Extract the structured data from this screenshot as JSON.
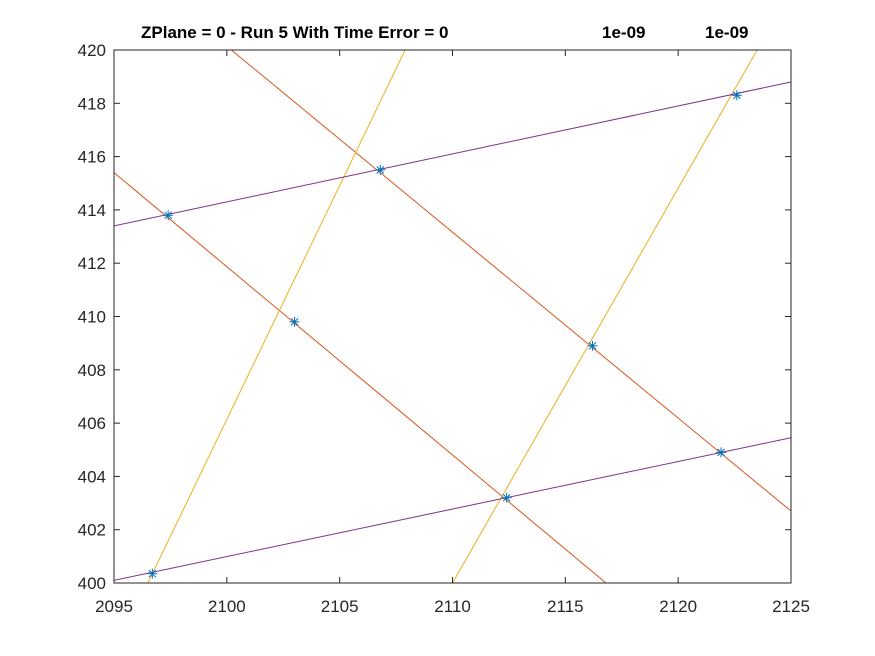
{
  "figure": {
    "title_main": "ZPlane = 0 - Run 5 With Time Error = 0",
    "title_val1": "1e-09",
    "title_val2": "1e-09"
  },
  "chart_data": {
    "type": "line",
    "title": "ZPlane = 0 - Run 5 With Time Error = 0        1e-09        1e-09",
    "xlabel": "",
    "ylabel": "",
    "xlim": [
      2095,
      2125
    ],
    "ylim": [
      400,
      420
    ],
    "xticks": [
      2095,
      2100,
      2105,
      2110,
      2115,
      2120,
      2125
    ],
    "yticks": [
      400,
      402,
      404,
      406,
      408,
      410,
      412,
      414,
      416,
      418,
      420
    ],
    "grid": false,
    "box": true,
    "series": [
      {
        "color": "#D95319",
        "points": [
          [
            2095.0,
            415.4
          ],
          [
            2116.8,
            400.0
          ]
        ]
      },
      {
        "color": "#D95319",
        "points": [
          [
            2100.2,
            420.0
          ],
          [
            2125.0,
            402.7
          ]
        ]
      },
      {
        "color": "#EDB120",
        "points": [
          [
            2096.5,
            400.0
          ],
          [
            2107.9,
            420.0
          ]
        ]
      },
      {
        "color": "#EDB120",
        "points": [
          [
            2110.0,
            400.0
          ],
          [
            2123.5,
            420.0
          ]
        ]
      },
      {
        "color": "#7E2F8E",
        "points": [
          [
            2095.0,
            413.4
          ],
          [
            2125.0,
            418.8
          ]
        ]
      },
      {
        "color": "#7E2F8E",
        "points": [
          [
            2095.0,
            400.1
          ],
          [
            2125.0,
            405.45
          ]
        ]
      }
    ],
    "markers": {
      "symbol": "*",
      "color": "#0072BD",
      "points": [
        [
          2096.7,
          400.35
        ],
        [
          2097.4,
          413.8
        ],
        [
          2103.0,
          409.8
        ],
        [
          2106.8,
          415.5
        ],
        [
          2112.4,
          403.2
        ],
        [
          2116.2,
          408.9
        ],
        [
          2121.9,
          404.9
        ],
        [
          2122.6,
          418.3
        ]
      ]
    }
  }
}
